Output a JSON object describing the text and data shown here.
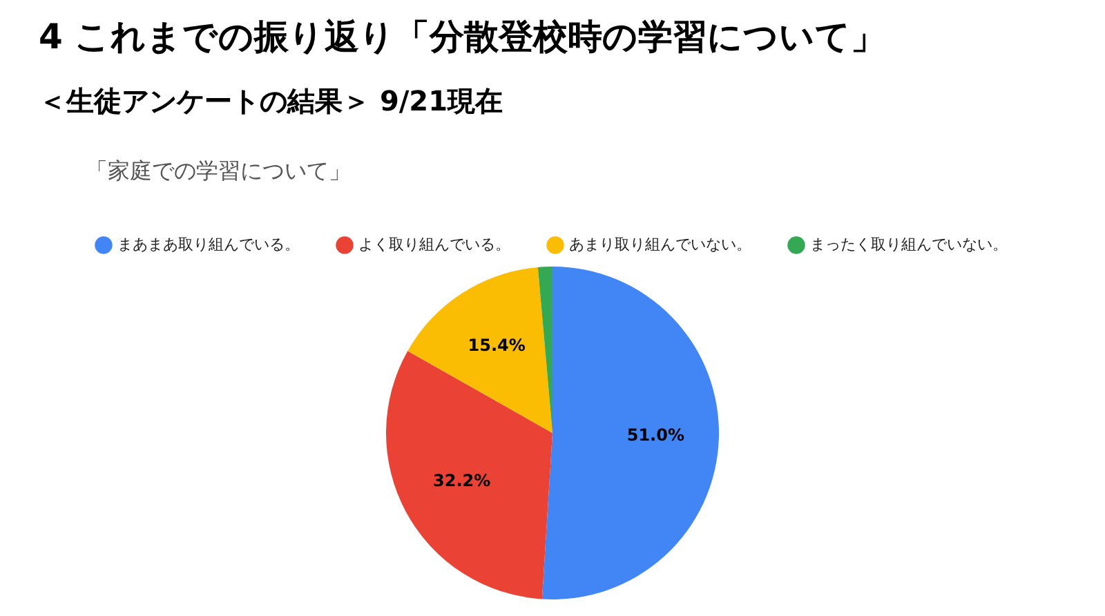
{
  "chart_data": {
    "type": "pie",
    "title": "4 これまでの振り返り「分散登校時の学習について」",
    "subtitle": "＜生徒アンケートの結果＞ 9/21現在",
    "annotations": [
      "「家庭での学習について」"
    ],
    "categories": [
      "まあまあ取り組んでいる。",
      "よく取り組んでいる。",
      "あまり取り組んでいない。",
      "まったく取り組んでいない。"
    ],
    "values": [
      51.0,
      32.2,
      15.4,
      1.4
    ],
    "colors": [
      "#4285f4",
      "#ea4335",
      "#fbbc04",
      "#34a853"
    ],
    "value_labels": [
      "51.0%",
      "32.2%",
      "15.4%",
      null
    ],
    "legend": "top"
  }
}
